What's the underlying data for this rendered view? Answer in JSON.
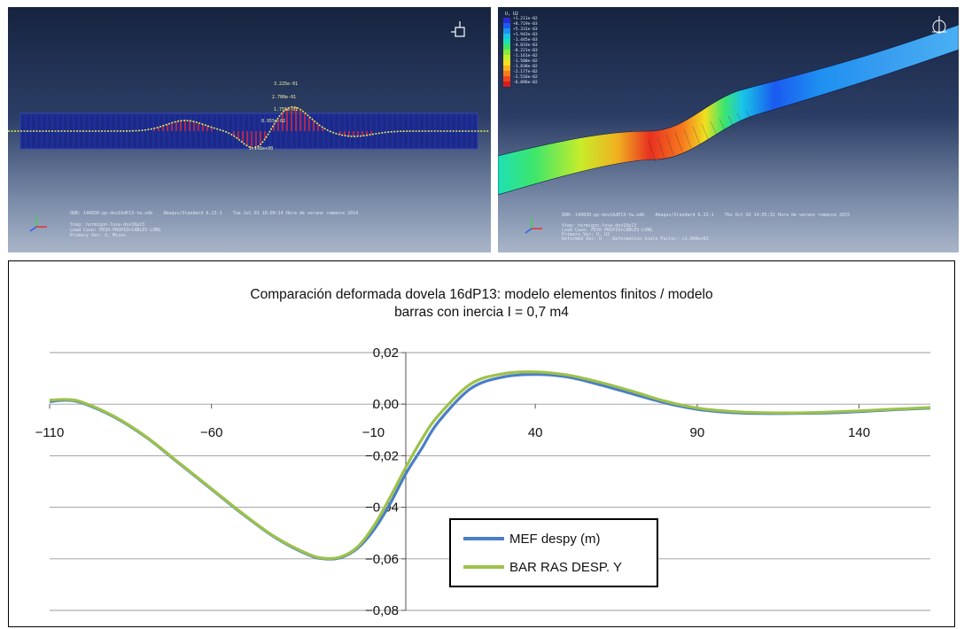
{
  "colors": {
    "mef": "#4a7ec6",
    "bar": "#9cc24a",
    "viewport_bg": "#1f2f52",
    "mesh_band": "#1b2a8a",
    "stress_red": "#e8283c",
    "gridline": "#9a9a9a"
  },
  "viewport_left": {
    "title": "Abaqus deformed mesh viewport",
    "value_labels": [
      "3.225e-01",
      "2.700e-01",
      "1.755e-01",
      "8.955e-02",
      "1.148e+00"
    ],
    "info_lines": [
      "ODB: 140830-pp-dov16dP13-tw.odb    Abaqus/Standard 6.13-1    Tue Jul 01 16:09:14 Hora de verano romance 2014",
      "Step: hormigon-losa-dov16p13",
      "Load Case: PESO-PROPIO+CABLES-LONG",
      "Primary Var: S, Mises"
    ],
    "icons": [
      "triad-icon",
      "view-cube-icon"
    ]
  },
  "viewport_right": {
    "title": "Abaqus U2 contour viewport",
    "legend_header": "U, U2",
    "legend_values": [
      "+1.211e-02",
      "+8.719e-03",
      "+5.331e-03",
      "+1.943e-03",
      "-1.445e-03",
      "-4.833e-03",
      "-8.221e-03",
      "-1.161e-02",
      "-1.500e-02",
      "-1.838e-02",
      "-2.177e-02",
      "-2.516e-02",
      "-6.096e-02"
    ],
    "legend_colors": [
      "#2b2bd4",
      "#1a5af0",
      "#1e90f0",
      "#19c6e6",
      "#1ee0b4",
      "#3ee66a",
      "#8be93a",
      "#c8ec2a",
      "#f0e020",
      "#f6b01e",
      "#f67a1e",
      "#f0421e",
      "#d41e1e"
    ],
    "info_lines": [
      "ODB: 140830-pp-dov16dP13-tw.odb    Abaqus/Standard 6.13-1    Thu Oct 02 14:05:32 Hora de verano romance 2015",
      "Step: hormigon-losa-dov16p13",
      "Load Case: PESO-PROPIO+CABLES-LONG",
      "Primary Var: U, U2",
      "Deformed Var: U    Deformation Scale Factor: +1.000e+02"
    ],
    "icons": [
      "triad-icon",
      "view-cube-icon"
    ]
  },
  "chart_data": {
    "type": "line",
    "title_line1": "Comparación deformada dovela 16dP13: modelo elementos finitos / modelo",
    "title_line2": "barras con inercia I = 0,7 m4",
    "xlabel": "",
    "ylabel": "",
    "xlim": [
      -110,
      162
    ],
    "ylim": [
      -0.08,
      0.02
    ],
    "x_ticks": [
      "−110",
      "−60",
      "−10",
      "40",
      "90",
      "140"
    ],
    "x_tick_values": [
      -110,
      -60,
      -10,
      40,
      90,
      140
    ],
    "y_ticks": [
      "0,02",
      "0,00",
      "−0,02",
      "−0,04",
      "−0,06",
      "−0,08"
    ],
    "y_tick_values": [
      0.02,
      0.0,
      -0.02,
      -0.04,
      -0.06,
      -0.08
    ],
    "grid": "horizontal",
    "legend_position": "lower-center",
    "series": [
      {
        "name": "MEF despy (m)",
        "color": "#4a7ec6",
        "x": [
          -110,
          -105,
          -100,
          -90,
          -80,
          -70,
          -60,
          -50,
          -40,
          -30,
          -25,
          -20,
          -15,
          -10,
          -5,
          0,
          5,
          10,
          20,
          30,
          40,
          50,
          60,
          70,
          80,
          90,
          100,
          110,
          120,
          130,
          140,
          150,
          162
        ],
        "y": [
          0.001,
          0.0015,
          0.0005,
          -0.005,
          -0.013,
          -0.023,
          -0.033,
          -0.043,
          -0.052,
          -0.0585,
          -0.06,
          -0.0595,
          -0.056,
          -0.049,
          -0.039,
          -0.027,
          -0.017,
          -0.007,
          0.006,
          0.0105,
          0.0115,
          0.0105,
          0.0075,
          0.004,
          0.0005,
          -0.002,
          -0.0032,
          -0.0036,
          -0.0036,
          -0.0034,
          -0.0029,
          -0.0022,
          -0.0015
        ]
      },
      {
        "name": "BAR RAS DESP. Y",
        "color": "#9cc24a",
        "x": [
          -110,
          -105,
          -100,
          -90,
          -80,
          -70,
          -60,
          -50,
          -40,
          -30,
          -25,
          -20,
          -15,
          -10,
          -5,
          0,
          5,
          10,
          20,
          30,
          40,
          50,
          60,
          70,
          80,
          90,
          100,
          110,
          120,
          130,
          140,
          150,
          162
        ],
        "y": [
          0.0015,
          0.0018,
          0.0008,
          -0.0048,
          -0.0128,
          -0.0228,
          -0.0328,
          -0.0428,
          -0.0518,
          -0.0582,
          -0.0598,
          -0.0592,
          -0.0555,
          -0.0475,
          -0.0365,
          -0.0245,
          -0.0135,
          -0.0045,
          0.0078,
          0.0118,
          0.0125,
          0.0113,
          0.0085,
          0.005,
          0.0012,
          -0.0015,
          -0.0028,
          -0.0033,
          -0.0034,
          -0.0031,
          -0.0026,
          -0.002,
          -0.0013
        ]
      }
    ]
  }
}
